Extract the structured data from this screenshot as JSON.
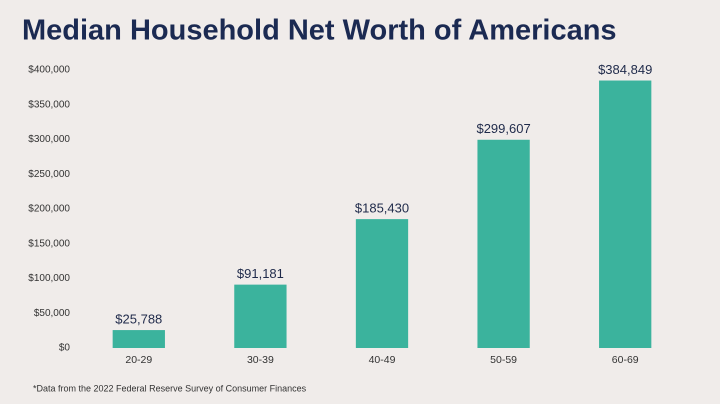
{
  "chart_data": {
    "type": "bar",
    "title": "Median Household Net Worth of Americans",
    "categories": [
      "20-29",
      "30-39",
      "40-49",
      "50-59",
      "60-69"
    ],
    "values": [
      25788,
      91181,
      185430,
      299607,
      384849
    ],
    "value_labels": [
      "$25,788",
      "$91,181",
      "$185,430",
      "$299,607",
      "$384,849"
    ],
    "color": "#3bb39d",
    "ylim": [
      0,
      400000
    ],
    "yticks": [
      {
        "value": 0,
        "label": "$0"
      },
      {
        "value": 50000,
        "label": "$50,000"
      },
      {
        "value": 100000,
        "label": "$100,000"
      },
      {
        "value": 150000,
        "label": "$150,000"
      },
      {
        "value": 200000,
        "label": "$200,000"
      },
      {
        "value": 250000,
        "label": "$250,000"
      },
      {
        "value": 300000,
        "label": "$300,000"
      },
      {
        "value": 350000,
        "label": "$350,000"
      },
      {
        "value": 400000,
        "label": "$400,000"
      }
    ],
    "grid": false,
    "footnote": "*Data from the 2022 Federal Reserve Survey of Consumer Finances"
  }
}
